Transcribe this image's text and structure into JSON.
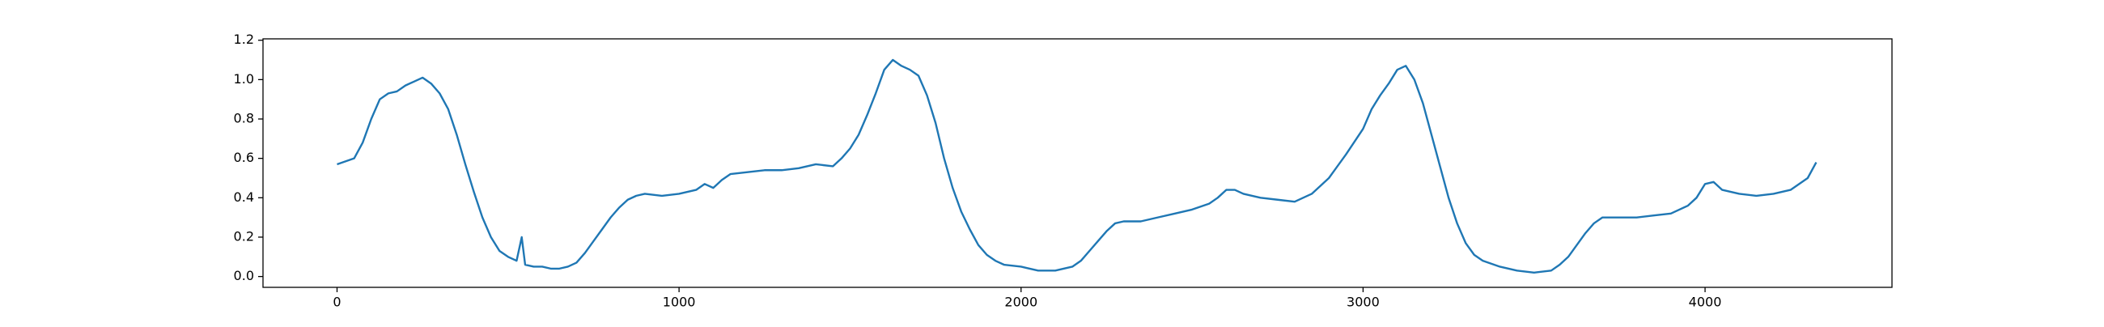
{
  "chart_data": {
    "type": "line",
    "color": "#1f77b4",
    "x": [
      0,
      50,
      75,
      100,
      125,
      150,
      175,
      200,
      225,
      250,
      275,
      300,
      325,
      350,
      375,
      400,
      425,
      450,
      475,
      500,
      525,
      540,
      550,
      575,
      600,
      625,
      650,
      675,
      700,
      725,
      750,
      775,
      800,
      825,
      850,
      875,
      900,
      950,
      1000,
      1050,
      1075,
      1100,
      1125,
      1150,
      1200,
      1250,
      1300,
      1350,
      1400,
      1450,
      1475,
      1500,
      1525,
      1550,
      1575,
      1600,
      1625,
      1650,
      1675,
      1700,
      1725,
      1750,
      1775,
      1800,
      1825,
      1850,
      1875,
      1900,
      1925,
      1950,
      2000,
      2050,
      2100,
      2150,
      2175,
      2200,
      2225,
      2250,
      2275,
      2300,
      2350,
      2400,
      2450,
      2500,
      2550,
      2575,
      2600,
      2625,
      2650,
      2700,
      2750,
      2800,
      2850,
      2900,
      2950,
      3000,
      3025,
      3050,
      3075,
      3100,
      3125,
      3150,
      3175,
      3200,
      3225,
      3250,
      3275,
      3300,
      3325,
      3350,
      3400,
      3450,
      3500,
      3550,
      3575,
      3600,
      3625,
      3650,
      3675,
      3700,
      3750,
      3800,
      3850,
      3900,
      3950,
      3975,
      4000,
      4025,
      4050,
      4100,
      4150,
      4200,
      4250,
      4300,
      4325
    ],
    "values": [
      0.57,
      0.6,
      0.68,
      0.8,
      0.9,
      0.93,
      0.94,
      0.97,
      0.99,
      1.01,
      0.98,
      0.93,
      0.85,
      0.72,
      0.57,
      0.43,
      0.3,
      0.2,
      0.13,
      0.1,
      0.08,
      0.2,
      0.06,
      0.05,
      0.05,
      0.04,
      0.04,
      0.05,
      0.07,
      0.12,
      0.18,
      0.24,
      0.3,
      0.35,
      0.39,
      0.41,
      0.42,
      0.41,
      0.42,
      0.44,
      0.47,
      0.45,
      0.49,
      0.52,
      0.53,
      0.54,
      0.54,
      0.55,
      0.57,
      0.56,
      0.6,
      0.65,
      0.72,
      0.82,
      0.93,
      1.05,
      1.1,
      1.07,
      1.05,
      1.02,
      0.92,
      0.78,
      0.6,
      0.45,
      0.33,
      0.24,
      0.16,
      0.11,
      0.08,
      0.06,
      0.05,
      0.03,
      0.03,
      0.05,
      0.08,
      0.13,
      0.18,
      0.23,
      0.27,
      0.28,
      0.28,
      0.3,
      0.32,
      0.34,
      0.37,
      0.4,
      0.44,
      0.44,
      0.42,
      0.4,
      0.39,
      0.38,
      0.42,
      0.5,
      0.62,
      0.75,
      0.85,
      0.92,
      0.98,
      1.05,
      1.07,
      1.0,
      0.88,
      0.72,
      0.56,
      0.4,
      0.27,
      0.17,
      0.11,
      0.08,
      0.05,
      0.03,
      0.02,
      0.03,
      0.06,
      0.1,
      0.16,
      0.22,
      0.27,
      0.3,
      0.3,
      0.3,
      0.31,
      0.32,
      0.36,
      0.4,
      0.47,
      0.48,
      0.44,
      0.42,
      0.41,
      0.42,
      0.44,
      0.5,
      0.58
    ],
    "xlim": [
      -216.5,
      4546.5
    ],
    "ylim": [
      -0.055,
      1.207
    ],
    "xticks": [
      0,
      1000,
      2000,
      3000,
      4000
    ],
    "yticks": [
      {
        "value": 0,
        "label": "0.0"
      },
      0.2,
      0.4,
      0.6,
      0.8,
      {
        "value": 1,
        "label": "1.0"
      },
      1.2
    ]
  }
}
